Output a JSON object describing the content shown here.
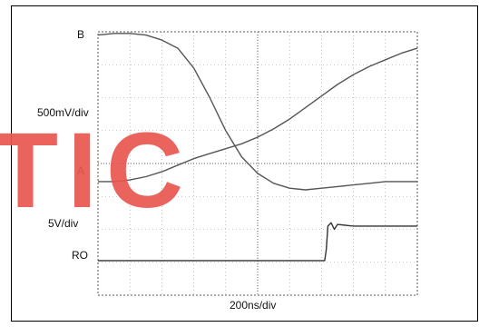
{
  "chart_data": {
    "type": "line",
    "title": "",
    "xlabel": "200ns/div",
    "x_unit": "ns",
    "xlim": [
      0,
      2000
    ],
    "grid": true,
    "divisions": {
      "x": 10,
      "y": 8
    },
    "channel_labels": {
      "b": "B",
      "scale_top": "500mV/div",
      "a": "A",
      "scale_bottom": "5V/div",
      "ro": "RO"
    },
    "series": [
      {
        "name": "B",
        "color": "#555555",
        "x": [
          0,
          100,
          200,
          300,
          400,
          500,
          600,
          700,
          800,
          900,
          1000,
          1100,
          1200,
          1300,
          1400,
          1500,
          1600,
          1700,
          1800,
          1900,
          2000
        ],
        "y_div": [
          7.9,
          7.95,
          7.95,
          7.9,
          7.75,
          7.5,
          6.9,
          6.0,
          5.0,
          4.2,
          3.7,
          3.4,
          3.25,
          3.2,
          3.25,
          3.3,
          3.35,
          3.4,
          3.45,
          3.45,
          3.45
        ]
      },
      {
        "name": "A",
        "color": "#555555",
        "x": [
          0,
          100,
          200,
          300,
          400,
          500,
          600,
          700,
          800,
          900,
          1000,
          1100,
          1200,
          1300,
          1400,
          1500,
          1600,
          1700,
          1800,
          1900,
          2000
        ],
        "y_div": [
          3.45,
          3.45,
          3.5,
          3.6,
          3.75,
          3.95,
          4.15,
          4.3,
          4.45,
          4.6,
          4.8,
          5.05,
          5.35,
          5.7,
          6.05,
          6.4,
          6.7,
          6.95,
          7.15,
          7.35,
          7.5
        ]
      },
      {
        "name": "RO",
        "color": "#333333",
        "x": [
          0,
          400,
          800,
          1200,
          1400,
          1420,
          1430,
          1440,
          1460,
          1480,
          1500,
          1600,
          1800,
          2000
        ],
        "y_div": [
          1.05,
          1.05,
          1.05,
          1.05,
          1.05,
          1.05,
          1.4,
          2.1,
          2.2,
          2.0,
          2.15,
          2.1,
          2.1,
          2.1
        ]
      }
    ]
  },
  "watermark": {
    "text": "TIC",
    "color": "#e8564f"
  }
}
